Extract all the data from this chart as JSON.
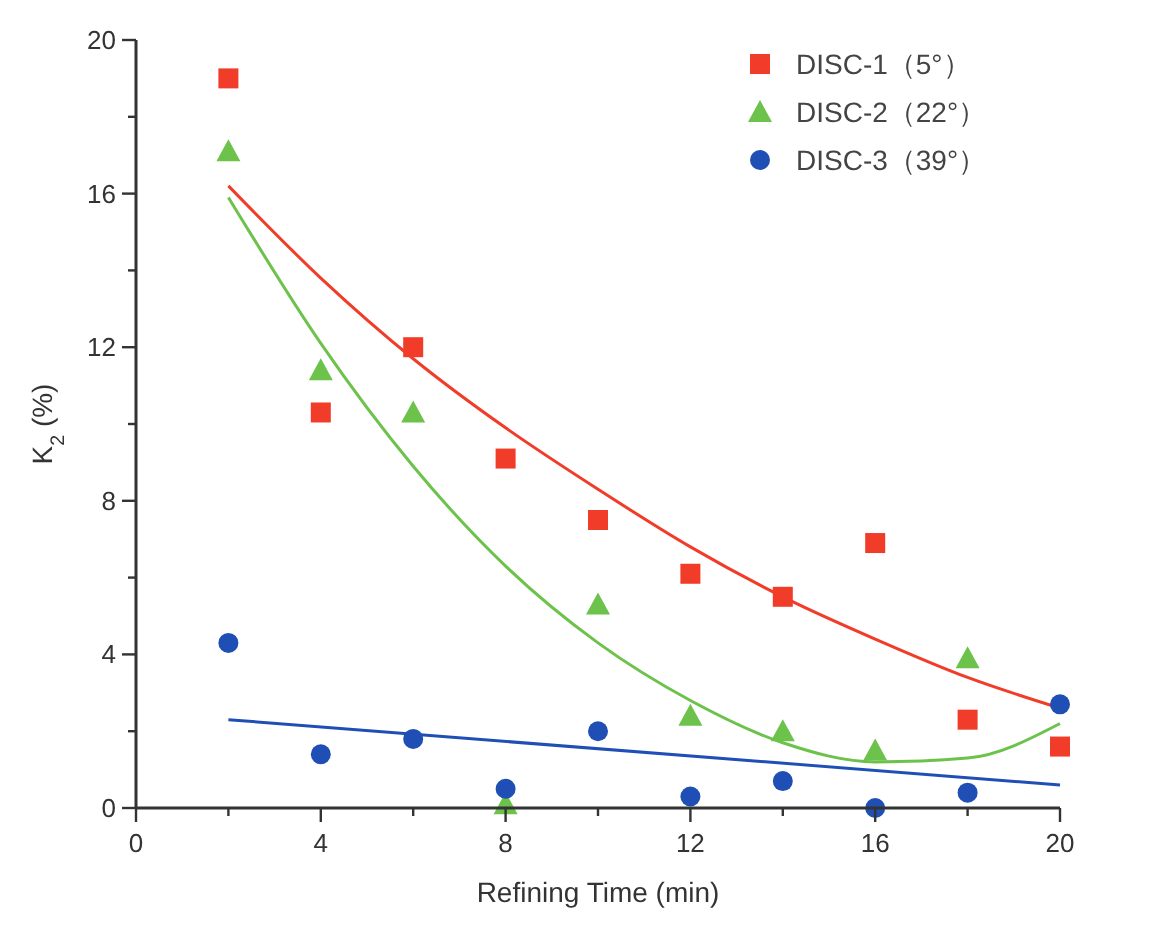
{
  "chart_data": {
    "type": "scatter",
    "xlabel": "Refining Time (min)",
    "ylabel": "K$_{2}$ (%)",
    "x": [
      2,
      4,
      6,
      8,
      10,
      12,
      14,
      16,
      18,
      20
    ],
    "xlim": [
      0,
      20
    ],
    "ylim": [
      0,
      20
    ],
    "xticks": [
      0,
      {
        "value": 2,
        "label": null
      },
      4,
      {
        "value": 6,
        "label": null
      },
      8,
      {
        "value": 10,
        "label": null
      },
      12,
      {
        "value": 14,
        "label": null
      },
      16,
      {
        "value": 18,
        "label": null
      },
      20
    ],
    "yticks": [
      0,
      {
        "value": 2,
        "label": null
      },
      4,
      {
        "value": 6,
        "label": null
      },
      8,
      {
        "value": 10,
        "label": null
      },
      12,
      {
        "value": 14,
        "label": null
      },
      16,
      {
        "value": 18,
        "label": null
      },
      20
    ],
    "grid": false,
    "legend": "top right",
    "series": [
      {
        "name": "DISC-1（5°）",
        "color": "#f03c28",
        "marker": "square",
        "values": [
          19.0,
          10.3,
          12.0,
          9.1,
          7.5,
          6.1,
          5.5,
          6.9,
          2.3,
          1.6
        ]
      },
      {
        "name": "DISC-2（22°）",
        "color": "#6cc24a",
        "marker": "triangle",
        "values": [
          17.1,
          11.4,
          10.3,
          0.1,
          5.3,
          2.4,
          2.0,
          1.5,
          3.9,
          null
        ]
      },
      {
        "name": "DISC-3（39°）",
        "color": "#1f4fb5",
        "marker": "circle",
        "values": [
          4.3,
          1.4,
          1.8,
          0.5,
          2.0,
          0.3,
          0.7,
          0.0,
          0.4,
          2.7
        ]
      },
      {
        "type": "line",
        "color": "#f03c28",
        "marker": "none",
        "values": [
          16.2,
          13.8,
          11.7,
          9.9,
          8.3,
          6.8,
          5.5,
          4.4,
          3.4,
          2.6
        ]
      },
      {
        "type": "line",
        "color": "#6cc24a",
        "marker": "none",
        "values": [
          15.9,
          12.1,
          8.9,
          6.3,
          4.3,
          2.8,
          1.7,
          1.2,
          1.3,
          2.2
        ]
      },
      {
        "type": "line",
        "color": "#1f4fb5",
        "marker": "none",
        "x": [
          2,
          20
        ],
        "values": [
          2.3,
          0.6
        ]
      }
    ]
  }
}
